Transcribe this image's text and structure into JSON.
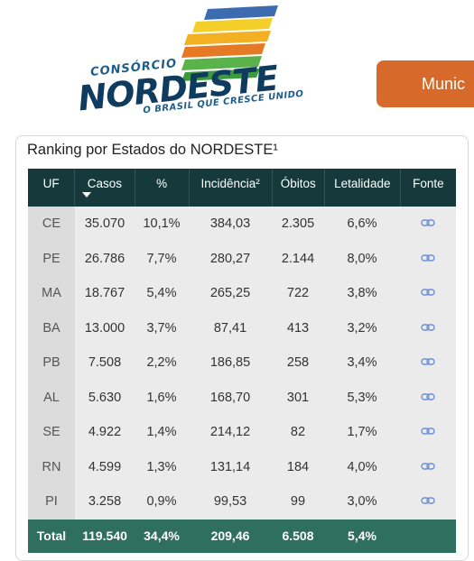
{
  "logo": {
    "pre": "CONSÓRCIO",
    "main": "NORDESTE",
    "tagline": "O BRASIL QUE CRESCE UNIDO"
  },
  "button": {
    "label": "Munic"
  },
  "ranking": {
    "title": "Ranking por Estados do NORDESTE¹",
    "headers": {
      "uf": "UF",
      "casos": "Casos",
      "pct": "%",
      "incidencia": "Incidência²",
      "obitos": "Óbitos",
      "letalidade": "Letalidade",
      "fonte": "Fonte"
    },
    "rows": [
      {
        "uf": "CE",
        "casos": "35.070",
        "pct": "10,1%",
        "incidencia": "384,03",
        "obitos": "2.305",
        "letalidade": "6,6%"
      },
      {
        "uf": "PE",
        "casos": "26.786",
        "pct": "7,7%",
        "incidencia": "280,27",
        "obitos": "2.144",
        "letalidade": "8,0%"
      },
      {
        "uf": "MA",
        "casos": "18.767",
        "pct": "5,4%",
        "incidencia": "265,25",
        "obitos": "722",
        "letalidade": "3,8%"
      },
      {
        "uf": "BA",
        "casos": "13.000",
        "pct": "3,7%",
        "incidencia": "87,41",
        "obitos": "413",
        "letalidade": "3,2%"
      },
      {
        "uf": "PB",
        "casos": "7.508",
        "pct": "2,2%",
        "incidencia": "186,85",
        "obitos": "258",
        "letalidade": "3,4%"
      },
      {
        "uf": "AL",
        "casos": "5.630",
        "pct": "1,6%",
        "incidencia": "168,70",
        "obitos": "301",
        "letalidade": "5,3%"
      },
      {
        "uf": "SE",
        "casos": "4.922",
        "pct": "1,4%",
        "incidencia": "214,12",
        "obitos": "82",
        "letalidade": "1,7%"
      },
      {
        "uf": "RN",
        "casos": "4.599",
        "pct": "1,3%",
        "incidencia": "131,14",
        "obitos": "184",
        "letalidade": "4,0%"
      },
      {
        "uf": "PI",
        "casos": "3.258",
        "pct": "0,9%",
        "incidencia": "99,53",
        "obitos": "99",
        "letalidade": "3,0%"
      }
    ],
    "total": {
      "label": "Total",
      "casos": "119.540",
      "pct": "34,4%",
      "incidencia": "209,46",
      "obitos": "6.508",
      "letalidade": "5,4%"
    },
    "fonte_icon": "link-icon"
  },
  "colors": {
    "header_bg": "#163a3c",
    "total_bg": "#2f6f5f",
    "button_bg": "#d7692b",
    "link_icon": "#6b8fd6"
  }
}
